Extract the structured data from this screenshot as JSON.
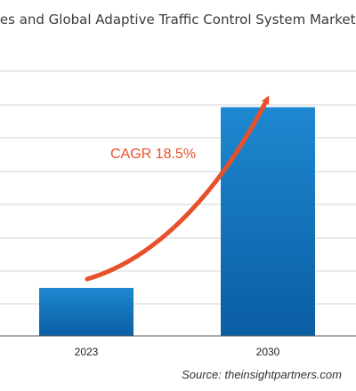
{
  "chart_data": {
    "type": "bar",
    "title": "tes and Global Adaptive Traffic Control System Market",
    "categories": [
      "2023",
      "2030"
    ],
    "values": [
      21,
      100
    ],
    "ylim": [
      0,
      115
    ],
    "grid": true,
    "annotation": "CAGR 18.5%",
    "source": "Source: theinsightpartners.com"
  },
  "colors": {
    "bar_top": "#1e88d0",
    "bar_bottom": "#0a5da3",
    "arrow": "#e8502a",
    "grid": "#d5d5d5",
    "axis": "#555555"
  }
}
